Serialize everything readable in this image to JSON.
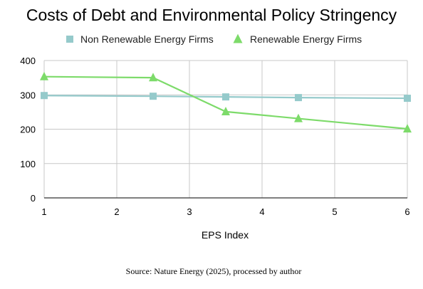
{
  "chart_data": {
    "type": "line",
    "title": "Costs of Debt and Environmental Policy Stringency",
    "xlabel": "EPS Index",
    "ylabel": "",
    "xlim": [
      1,
      6
    ],
    "ylim": [
      0,
      400
    ],
    "x_ticks": [
      "1",
      "2",
      "3",
      "4",
      "5",
      "6"
    ],
    "y_ticks": [
      "0",
      "100",
      "200",
      "300",
      "400"
    ],
    "grid": true,
    "legend_position": "top",
    "series": [
      {
        "name": "Non Renewable Energy Firms",
        "color": "#95CACB",
        "marker": "square",
        "points": [
          {
            "x": 1,
            "y": 298
          },
          {
            "x": 2.5,
            "y": 296
          },
          {
            "x": 3.5,
            "y": 294
          },
          {
            "x": 4.5,
            "y": 292
          },
          {
            "x": 6,
            "y": 290
          }
        ]
      },
      {
        "name": "Renewable Energy Firms",
        "color": "#7DDB6A",
        "marker": "triangle",
        "points": [
          {
            "x": 1,
            "y": 353
          },
          {
            "x": 2.5,
            "y": 350
          },
          {
            "x": 3.5,
            "y": 251
          },
          {
            "x": 4.5,
            "y": 231
          },
          {
            "x": 6,
            "y": 201
          }
        ]
      }
    ],
    "source": "Source: Nature Energy (2025), processed by author"
  }
}
